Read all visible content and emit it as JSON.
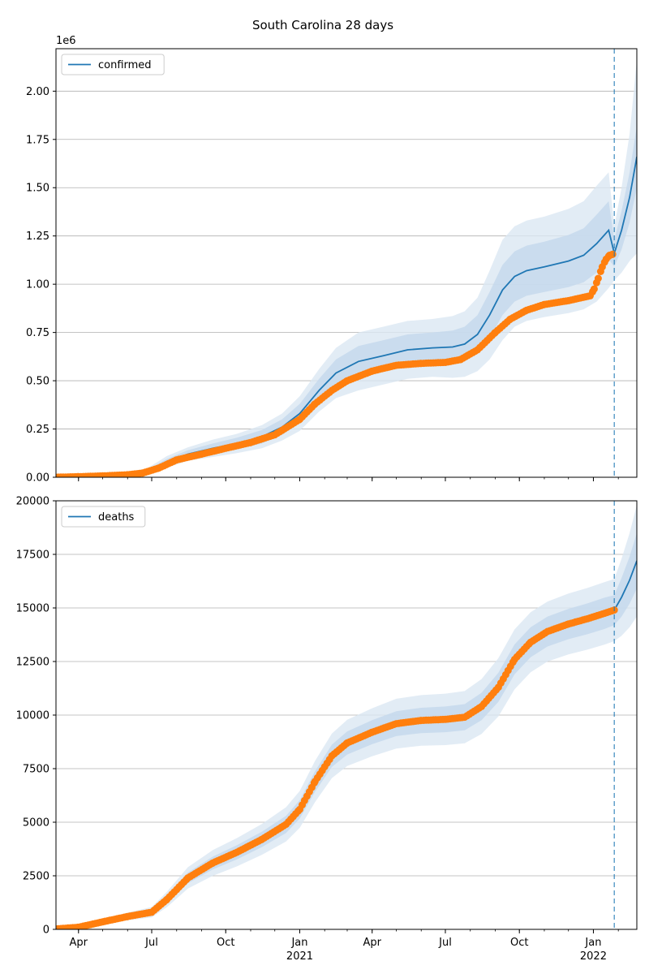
{
  "figure_title": "South Carolina 28 days",
  "colors": {
    "model": "#1f77b4",
    "observed": "#ff7f0e",
    "band_outer": "#dbe7f3",
    "band_inner": "#c4d8ec",
    "grid": "#b0b0b0",
    "forecast_line": "#1f77b4"
  },
  "x_ticks": [
    {
      "date": "2020-04-01",
      "label": "Apr",
      "label2": ""
    },
    {
      "date": "2020-07-01",
      "label": "Jul",
      "label2": ""
    },
    {
      "date": "2020-10-01",
      "label": "Oct",
      "label2": ""
    },
    {
      "date": "2021-01-01",
      "label": "Jan",
      "label2": "2021"
    },
    {
      "date": "2021-04-01",
      "label": "Apr",
      "label2": ""
    },
    {
      "date": "2021-07-01",
      "label": "Jul",
      "label2": ""
    },
    {
      "date": "2021-10-01",
      "label": "Oct",
      "label2": ""
    },
    {
      "date": "2022-01-01",
      "label": "Jan",
      "label2": "2022"
    }
  ],
  "x_range": [
    "2020-03-04",
    "2022-02-24"
  ],
  "forecast_start": "2022-01-27",
  "chart_data": [
    {
      "type": "line",
      "legend": "confirmed",
      "legend_position": "upper left",
      "grid": "y",
      "y_scale_label": "1e6",
      "ylim": [
        0,
        2.22
      ],
      "y_ticks": [
        0,
        0.25,
        0.5,
        0.75,
        1.0,
        1.25,
        1.5,
        1.75,
        2.0
      ],
      "y_tick_labels": [
        "0.00",
        "0.25",
        "0.50",
        "0.75",
        "1.00",
        "1.25",
        "1.50",
        "1.75",
        "2.00"
      ],
      "model": {
        "x": [
          "2020-03-04",
          "2020-05-15",
          "2020-06-25",
          "2020-07-20",
          "2020-08-15",
          "2020-09-15",
          "2020-10-15",
          "2020-11-15",
          "2020-12-10",
          "2021-01-01",
          "2021-01-25",
          "2021-02-15",
          "2021-03-15",
          "2021-04-15",
          "2021-05-15",
          "2021-06-15",
          "2021-07-10",
          "2021-07-25",
          "2021-08-10",
          "2021-08-25",
          "2021-09-10",
          "2021-09-25",
          "2021-10-10",
          "2021-11-01",
          "2021-12-01",
          "2021-12-20",
          "2022-01-05",
          "2022-01-20",
          "2022-01-27",
          "2022-02-05",
          "2022-02-15",
          "2022-02-24"
        ],
        "y": [
          0.0,
          0.012,
          0.03,
          0.08,
          0.12,
          0.15,
          0.175,
          0.21,
          0.26,
          0.33,
          0.45,
          0.54,
          0.6,
          0.63,
          0.66,
          0.67,
          0.675,
          0.69,
          0.74,
          0.84,
          0.97,
          1.04,
          1.07,
          1.09,
          1.12,
          1.15,
          1.21,
          1.28,
          1.16,
          1.28,
          1.45,
          1.66
        ]
      },
      "band_inner_width": [
        0.0,
        0.002,
        0.008,
        0.016,
        0.02,
        0.025,
        0.03,
        0.035,
        0.04,
        0.05,
        0.06,
        0.07,
        0.08,
        0.08,
        0.08,
        0.08,
        0.085,
        0.09,
        0.1,
        0.12,
        0.13,
        0.13,
        0.13,
        0.13,
        0.135,
        0.14,
        0.15,
        0.15,
        0.07,
        0.1,
        0.13,
        0.16
      ],
      "band_outer_width": [
        0.0,
        0.004,
        0.015,
        0.03,
        0.035,
        0.045,
        0.05,
        0.06,
        0.07,
        0.09,
        0.11,
        0.13,
        0.15,
        0.15,
        0.15,
        0.15,
        0.16,
        0.17,
        0.19,
        0.23,
        0.26,
        0.26,
        0.26,
        0.26,
        0.27,
        0.28,
        0.3,
        0.3,
        0.14,
        0.22,
        0.33,
        0.5
      ],
      "observed": {
        "x": [
          "2020-03-04",
          "2020-04-01",
          "2020-05-01",
          "2020-06-01",
          "2020-06-20",
          "2020-07-10",
          "2020-08-01",
          "2020-09-01",
          "2020-10-01",
          "2020-11-01",
          "2020-12-01",
          "2021-01-01",
          "2021-01-20",
          "2021-02-10",
          "2021-03-01",
          "2021-04-01",
          "2021-05-01",
          "2021-06-01",
          "2021-07-01",
          "2021-07-20",
          "2021-08-10",
          "2021-09-01",
          "2021-09-20",
          "2021-10-10",
          "2021-11-01",
          "2021-12-01",
          "2021-12-28",
          "2022-01-02",
          "2022-01-07",
          "2022-01-12",
          "2022-01-17",
          "2022-01-21",
          "2022-01-25"
        ],
        "y": [
          0.0,
          0.003,
          0.007,
          0.013,
          0.022,
          0.048,
          0.09,
          0.12,
          0.15,
          0.18,
          0.22,
          0.3,
          0.38,
          0.45,
          0.5,
          0.55,
          0.58,
          0.59,
          0.595,
          0.61,
          0.66,
          0.75,
          0.82,
          0.865,
          0.895,
          0.915,
          0.94,
          0.975,
          1.03,
          1.09,
          1.13,
          1.15,
          1.155
        ]
      }
    },
    {
      "type": "line",
      "legend": "deaths",
      "legend_position": "upper left",
      "grid": "y",
      "ylim": [
        0,
        20000
      ],
      "y_ticks": [
        0,
        2500,
        5000,
        7500,
        10000,
        12500,
        15000,
        17500,
        20000
      ],
      "y_tick_labels": [
        "0",
        "2500",
        "5000",
        "7500",
        "10000",
        "12500",
        "15000",
        "17500",
        "20000"
      ],
      "model": {
        "x": [
          "2020-03-04",
          "2020-04-01",
          "2020-05-01",
          "2020-06-01",
          "2020-07-01",
          "2020-07-20",
          "2020-08-15",
          "2020-09-15",
          "2020-10-15",
          "2020-11-15",
          "2020-12-15",
          "2021-01-01",
          "2021-01-20",
          "2021-02-10",
          "2021-03-01",
          "2021-04-01",
          "2021-05-01",
          "2021-06-01",
          "2021-07-01",
          "2021-07-25",
          "2021-08-15",
          "2021-09-05",
          "2021-09-25",
          "2021-10-15",
          "2021-11-05",
          "2021-12-01",
          "2021-12-25",
          "2022-01-15",
          "2022-01-27",
          "2022-02-05",
          "2022-02-15",
          "2022-02-24"
        ],
        "y": [
          20,
          100,
          350,
          600,
          800,
          1400,
          2400,
          3100,
          3600,
          4200,
          4900,
          5600,
          6900,
          8100,
          8700,
          9200,
          9600,
          9750,
          9800,
          9900,
          10400,
          11300,
          12600,
          13400,
          13900,
          14250,
          14500,
          14750,
          14900,
          15500,
          16300,
          17200
        ]
      },
      "band_inner_width": [
        0,
        20,
        60,
        90,
        120,
        180,
        250,
        300,
        330,
        360,
        400,
        430,
        480,
        520,
        540,
        560,
        580,
        590,
        600,
        610,
        640,
        680,
        700,
        700,
        700,
        710,
        720,
        730,
        700,
        900,
        1100,
        1300
      ],
      "band_outer_width": [
        0,
        40,
        120,
        180,
        240,
        360,
        500,
        600,
        660,
        720,
        800,
        860,
        960,
        1040,
        1080,
        1120,
        1160,
        1180,
        1200,
        1220,
        1280,
        1360,
        1400,
        1400,
        1400,
        1420,
        1440,
        1460,
        1450,
        1800,
        2200,
        2600
      ],
      "observed": {
        "x": [
          "2020-03-04",
          "2020-04-01",
          "2020-05-01",
          "2020-06-01",
          "2020-07-01",
          "2020-07-20",
          "2020-08-15",
          "2020-09-15",
          "2020-10-15",
          "2020-11-15",
          "2020-12-15",
          "2021-01-01",
          "2021-01-20",
          "2021-02-10",
          "2021-03-01",
          "2021-04-01",
          "2021-05-01",
          "2021-06-01",
          "2021-07-01",
          "2021-07-25",
          "2021-08-15",
          "2021-09-05",
          "2021-09-25",
          "2021-10-15",
          "2021-11-05",
          "2021-12-01",
          "2021-12-25",
          "2022-01-15",
          "2022-01-27"
        ],
        "y": [
          20,
          100,
          350,
          600,
          800,
          1400,
          2400,
          3100,
          3600,
          4200,
          4900,
          5600,
          6900,
          8100,
          8700,
          9200,
          9600,
          9750,
          9800,
          9900,
          10400,
          11300,
          12600,
          13400,
          13900,
          14250,
          14500,
          14750,
          14900
        ]
      }
    }
  ]
}
